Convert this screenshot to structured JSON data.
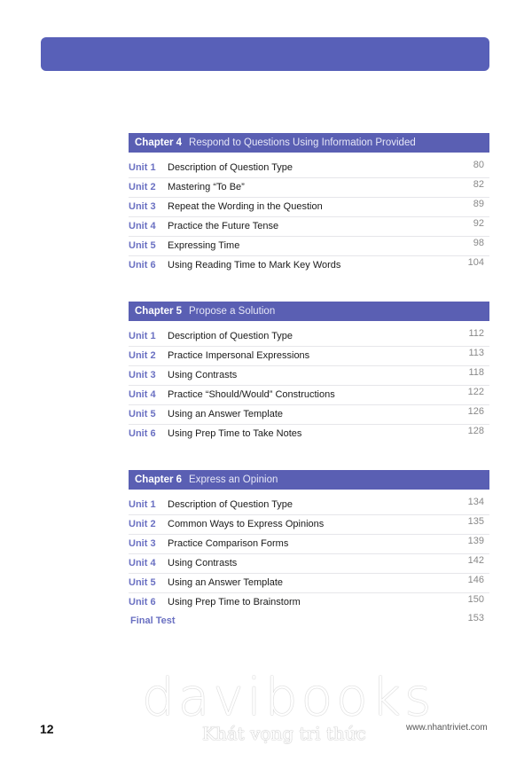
{
  "colors": {
    "accent": "#5a5fb3",
    "unit_label": "#6a70c2"
  },
  "chapters": [
    {
      "number": "Chapter 4",
      "title": "Respond to Questions Using Information Provided",
      "units": [
        {
          "unit": "Unit 1",
          "title": "Description of Question Type",
          "page": "80"
        },
        {
          "unit": "Unit 2",
          "title": "Mastering “To Be”",
          "page": "82"
        },
        {
          "unit": "Unit 3",
          "title": "Repeat the Wording in the Question",
          "page": "89"
        },
        {
          "unit": "Unit 4",
          "title": "Practice the Future Tense",
          "page": "92"
        },
        {
          "unit": "Unit 5",
          "title": "Expressing Time",
          "page": "98"
        },
        {
          "unit": "Unit 6",
          "title": "Using Reading Time to Mark Key Words",
          "page": "104"
        }
      ]
    },
    {
      "number": "Chapter 5",
      "title": "Propose a Solution",
      "units": [
        {
          "unit": "Unit 1",
          "title": "Description of Question Type",
          "page": "112"
        },
        {
          "unit": "Unit 2",
          "title": "Practice Impersonal Expressions",
          "page": "113"
        },
        {
          "unit": "Unit 3",
          "title": "Using Contrasts",
          "page": "118"
        },
        {
          "unit": "Unit 4",
          "title": "Practice “Should/Would” Constructions",
          "page": "122"
        },
        {
          "unit": "Unit 5",
          "title": "Using an Answer Template",
          "page": "126"
        },
        {
          "unit": "Unit 6",
          "title": "Using Prep Time to Take Notes",
          "page": "128"
        }
      ]
    },
    {
      "number": "Chapter 6",
      "title": "Express an Opinion",
      "units": [
        {
          "unit": "Unit 1",
          "title": "Description of Question Type",
          "page": "134"
        },
        {
          "unit": "Unit 2",
          "title": "Common Ways to Express Opinions",
          "page": "135"
        },
        {
          "unit": "Unit 3",
          "title": "Practice Comparison Forms",
          "page": "139"
        },
        {
          "unit": "Unit 4",
          "title": "Using Contrasts",
          "page": "142"
        },
        {
          "unit": "Unit 5",
          "title": "Using an Answer Template",
          "page": "146"
        },
        {
          "unit": "Unit 6",
          "title": "Using Prep Time to Brainstorm",
          "page": "150"
        }
      ]
    }
  ],
  "final_test": {
    "label": "Final Test",
    "page": "153"
  },
  "footer": {
    "page_number": "12",
    "url": "www.nhantriviet.com"
  },
  "watermark": {
    "brand": "davibooks",
    "slogan": "Khát vọng tri thức"
  }
}
